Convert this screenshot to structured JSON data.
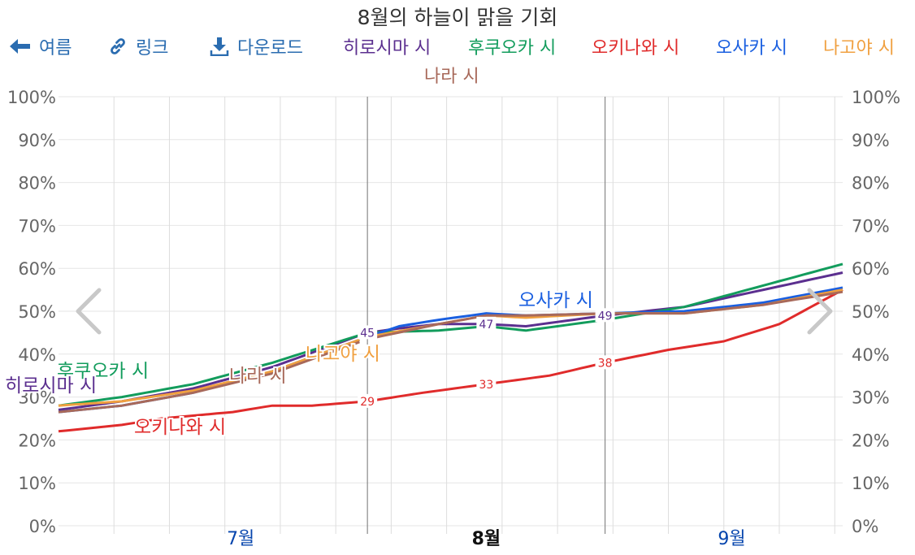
{
  "title": "8월의 하늘이 맑을 기회",
  "toolbar": {
    "back": {
      "label": "여름",
      "icon": "arrow-left-icon"
    },
    "link": {
      "label": "링크",
      "icon": "link-icon"
    },
    "download": {
      "label": "다운로드",
      "icon": "download-icon"
    }
  },
  "colors": {
    "toolbar": "#2a6cb0",
    "grid": "#e6e6e6",
    "axis_text": "#666666",
    "month_axis": "#0645ad"
  },
  "chart_data": {
    "type": "line",
    "title": "8월의 하늘이 맑을 기회",
    "x_start": "2024-06-23",
    "x_end": "2024-09-30",
    "x_ticks": [
      {
        "label": "7월",
        "date": "2024-07-16",
        "active": false
      },
      {
        "label": "8월",
        "date": "2024-08-16",
        "active": true
      },
      {
        "label": "9월",
        "date": "2024-09-16",
        "active": false
      }
    ],
    "focus_divider_dates": [
      "2024-08-01",
      "2024-08-31"
    ],
    "ylim": [
      0,
      100
    ],
    "y_ticks": [
      "0%",
      "10%",
      "20%",
      "30%",
      "40%",
      "50%",
      "60%",
      "70%",
      "80%",
      "90%",
      "100%"
    ],
    "grid": true,
    "legend_position": "top",
    "series": [
      {
        "name": "히로시마 시",
        "color": "#5b2f8f",
        "points": [
          [
            "2024-06-23",
            27
          ],
          [
            "2024-07-01",
            29
          ],
          [
            "2024-07-10",
            32
          ],
          [
            "2024-07-20",
            37
          ],
          [
            "2024-08-01",
            45
          ],
          [
            "2024-08-05",
            46
          ],
          [
            "2024-08-10",
            47
          ],
          [
            "2024-08-16",
            47
          ],
          [
            "2024-08-21",
            46.5
          ],
          [
            "2024-08-31",
            49
          ],
          [
            "2024-09-10",
            51
          ],
          [
            "2024-09-20",
            55
          ],
          [
            "2024-09-30",
            59
          ]
        ],
        "labels": [
          {
            "date": "2024-08-01",
            "value": "45"
          },
          {
            "date": "2024-08-16",
            "value": "47"
          },
          {
            "date": "2024-08-31",
            "value": "49"
          }
        ]
      },
      {
        "name": "후쿠오카 시",
        "color": "#129c5c",
        "points": [
          [
            "2024-06-23",
            28
          ],
          [
            "2024-07-01",
            30
          ],
          [
            "2024-07-10",
            33
          ],
          [
            "2024-07-20",
            38
          ],
          [
            "2024-08-01",
            45
          ],
          [
            "2024-08-10",
            45.5
          ],
          [
            "2024-08-16",
            46.5
          ],
          [
            "2024-08-21",
            45.5
          ],
          [
            "2024-08-31",
            48
          ],
          [
            "2024-09-10",
            51
          ],
          [
            "2024-09-20",
            56
          ],
          [
            "2024-09-30",
            61
          ]
        ],
        "labels": []
      },
      {
        "name": "오키나와 시",
        "color": "#e02b2b",
        "points": [
          [
            "2024-06-23",
            22
          ],
          [
            "2024-07-01",
            23.5
          ],
          [
            "2024-07-06",
            25
          ],
          [
            "2024-07-15",
            26.5
          ],
          [
            "2024-07-20",
            28
          ],
          [
            "2024-07-25",
            28
          ],
          [
            "2024-08-01",
            29
          ],
          [
            "2024-08-08",
            31
          ],
          [
            "2024-08-16",
            33
          ],
          [
            "2024-08-24",
            35
          ],
          [
            "2024-08-31",
            38
          ],
          [
            "2024-09-08",
            41
          ],
          [
            "2024-09-15",
            43
          ],
          [
            "2024-09-22",
            47
          ],
          [
            "2024-09-30",
            55
          ]
        ],
        "labels": [
          {
            "date": "2024-08-01",
            "value": "29"
          },
          {
            "date": "2024-08-16",
            "value": "33"
          },
          {
            "date": "2024-08-31",
            "value": "38"
          }
        ]
      },
      {
        "name": "오사카 시",
        "color": "#1a5fe0",
        "points": [
          [
            "2024-06-23",
            26.5
          ],
          [
            "2024-07-01",
            28
          ],
          [
            "2024-07-10",
            31
          ],
          [
            "2024-07-20",
            36
          ],
          [
            "2024-08-01",
            44
          ],
          [
            "2024-08-05",
            46.5
          ],
          [
            "2024-08-10",
            48
          ],
          [
            "2024-08-16",
            49.5
          ],
          [
            "2024-08-21",
            49
          ],
          [
            "2024-08-31",
            49.5
          ],
          [
            "2024-09-10",
            50
          ],
          [
            "2024-09-20",
            52
          ],
          [
            "2024-09-30",
            55.5
          ]
        ],
        "labels": []
      },
      {
        "name": "나고야 시",
        "color": "#f0a040",
        "points": [
          [
            "2024-06-23",
            28
          ],
          [
            "2024-07-01",
            29
          ],
          [
            "2024-07-10",
            31.5
          ],
          [
            "2024-07-20",
            36
          ],
          [
            "2024-08-01",
            44
          ],
          [
            "2024-08-10",
            47
          ],
          [
            "2024-08-16",
            49
          ],
          [
            "2024-08-21",
            48.5
          ],
          [
            "2024-08-31",
            49.5
          ],
          [
            "2024-09-10",
            49.5
          ],
          [
            "2024-09-20",
            51.5
          ],
          [
            "2024-09-30",
            55
          ]
        ],
        "labels": []
      },
      {
        "name": "나라 시",
        "color": "#a8695a",
        "points": [
          [
            "2024-06-23",
            26.5
          ],
          [
            "2024-07-01",
            28
          ],
          [
            "2024-07-10",
            31
          ],
          [
            "2024-07-20",
            35.5
          ],
          [
            "2024-08-01",
            43.5
          ],
          [
            "2024-08-10",
            47
          ],
          [
            "2024-08-16",
            49
          ],
          [
            "2024-08-21",
            49
          ],
          [
            "2024-08-31",
            49.5
          ],
          [
            "2024-09-10",
            49.5
          ],
          [
            "2024-09-20",
            51.5
          ],
          [
            "2024-09-30",
            54.5
          ]
        ],
        "labels": []
      }
    ],
    "annotations": [
      {
        "text": "후쿠오카 시",
        "series": "후쿠오카 시"
      },
      {
        "text": "히로시마 시",
        "series": "히로시마 시"
      },
      {
        "text": "나라 시",
        "series": "나라 시"
      },
      {
        "text": "나고야 시",
        "series": "나고야 시"
      },
      {
        "text": "오키나와 시",
        "series": "오키나와 시"
      },
      {
        "text": "오사카 시",
        "series": "오사카 시"
      }
    ]
  }
}
